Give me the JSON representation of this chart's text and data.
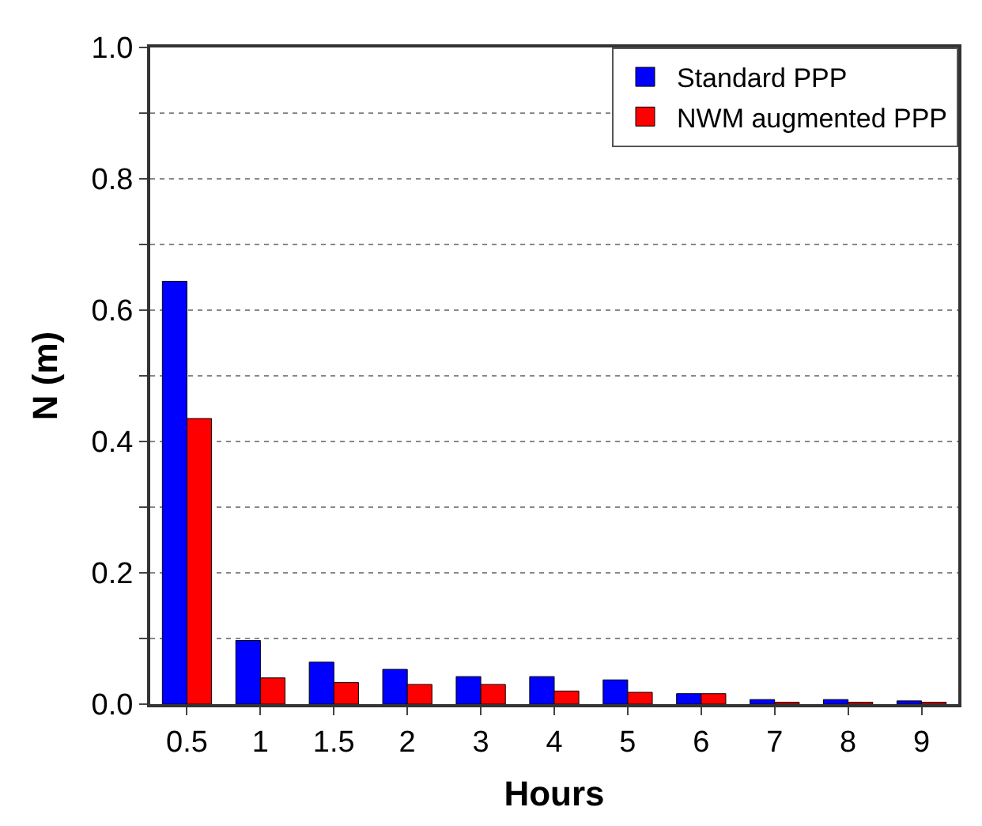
{
  "chart_data": {
    "type": "bar",
    "xlabel": "Hours",
    "ylabel": "N (m)",
    "categories": [
      "0.5",
      "1",
      "1.5",
      "2",
      "3",
      "4",
      "5",
      "6",
      "7",
      "8",
      "9"
    ],
    "series": [
      {
        "name": "Standard PPP",
        "color": "#0000ff",
        "values": [
          0.644,
          0.097,
          0.064,
          0.053,
          0.042,
          0.042,
          0.037,
          0.016,
          0.007,
          0.007,
          0.005
        ]
      },
      {
        "name": "NWM augmented PPP",
        "color": "#ff0000",
        "values": [
          0.435,
          0.04,
          0.033,
          0.03,
          0.03,
          0.02,
          0.018,
          0.016,
          0.003,
          0.003,
          0.003
        ]
      }
    ],
    "ylim": [
      0,
      1.0
    ],
    "yticks": [
      {
        "value": 0,
        "label": "0.0"
      },
      {
        "value": 0.1,
        "label": null
      },
      0.2,
      {
        "value": 0.3,
        "label": null
      },
      0.4,
      {
        "value": 0.5,
        "label": null
      },
      0.6,
      {
        "value": 0.7,
        "label": null
      },
      0.8,
      {
        "value": 0.9,
        "label": null
      },
      {
        "value": 1.0,
        "label": "1.0"
      }
    ],
    "grid": "y",
    "legend": "top right"
  }
}
